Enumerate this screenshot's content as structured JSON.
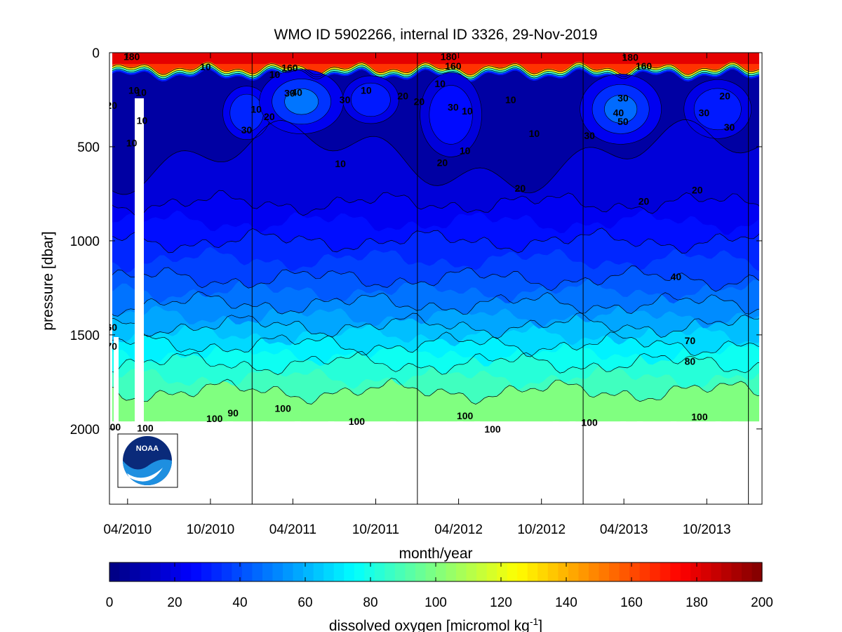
{
  "chart_data": {
    "type": "heatmap",
    "title": "WMO ID 5902266, internal ID 3326, 29-Nov-2019",
    "xlabel": "month/year",
    "ylabel": "pressure [dbar]",
    "colorbar_label": "dissolved oxygen [micromol kg",
    "colorbar_label_sup": "-1",
    "colorbar_label_end": "]",
    "xlim": [
      "2010-02-20",
      "2014-01-31"
    ],
    "ylim": [
      0,
      2400
    ],
    "x_ticks": [
      {
        "date": "2010-04-01",
        "label": "04/2010"
      },
      {
        "date": "2010-10-01",
        "label": "10/2010"
      },
      {
        "date": "2011-04-01",
        "label": "04/2011"
      },
      {
        "date": "2011-10-01",
        "label": "10/2011"
      },
      {
        "date": "2012-04-01",
        "label": "04/2012"
      },
      {
        "date": "2012-10-01",
        "label": "10/2012"
      },
      {
        "date": "2013-04-01",
        "label": "04/2013"
      },
      {
        "date": "2013-10-01",
        "label": "10/2013"
      }
    ],
    "y_ticks": [
      0,
      500,
      1000,
      1500,
      2000
    ],
    "year_lines": [
      "2011-01-01",
      "2012-01-01",
      "2013-01-01",
      "2014-01-01"
    ],
    "colorbar_range": [
      0,
      200
    ],
    "colorbar_ticks": [
      0,
      20,
      40,
      60,
      80,
      100,
      120,
      140,
      160,
      180,
      200
    ],
    "data_max_pressure": 1960,
    "oxygen_profile": [
      {
        "pressure": 0,
        "oxygen": 180
      },
      {
        "pressure": 60,
        "oxygen": 175
      },
      {
        "pressure": 90,
        "oxygen": 25
      },
      {
        "pressure": 150,
        "oxygen": 8
      },
      {
        "pressure": 400,
        "oxygen": 9
      },
      {
        "pressure": 800,
        "oxygen": 20
      },
      {
        "pressure": 1000,
        "oxygen": 30
      },
      {
        "pressure": 1200,
        "oxygen": 40
      },
      {
        "pressure": 1400,
        "oxygen": 55
      },
      {
        "pressure": 1550,
        "oxygen": 70
      },
      {
        "pressure": 1650,
        "oxygen": 80
      },
      {
        "pressure": 1800,
        "oxygen": 90
      },
      {
        "pressure": 1960,
        "oxygen": 100
      }
    ],
    "contour_labels": [
      {
        "text": "180",
        "date": "2010-04-10",
        "pressure": 20
      },
      {
        "text": "10",
        "date": "2010-09-20",
        "pressure": 75
      },
      {
        "text": "10",
        "date": "2011-02-20",
        "pressure": 115
      },
      {
        "text": "160",
        "date": "2011-03-25",
        "pressure": 80
      },
      {
        "text": "10",
        "date": "2010-04-15",
        "pressure": 200
      },
      {
        "text": "10",
        "date": "2010-05-01",
        "pressure": 210
      },
      {
        "text": "10",
        "date": "2010-05-03",
        "pressure": 360
      },
      {
        "text": "10",
        "date": "2010-04-10",
        "pressure": 480
      },
      {
        "text": "20",
        "date": "2010-02-25",
        "pressure": 280
      },
      {
        "text": "30",
        "date": "2010-12-20",
        "pressure": 410
      },
      {
        "text": "10",
        "date": "2011-01-10",
        "pressure": 300
      },
      {
        "text": "20",
        "date": "2011-02-08",
        "pressure": 340
      },
      {
        "text": "30",
        "date": "2011-03-25",
        "pressure": 215
      },
      {
        "text": "40",
        "date": "2011-04-10",
        "pressure": 210
      },
      {
        "text": "30",
        "date": "2011-07-25",
        "pressure": 250
      },
      {
        "text": "10",
        "date": "2011-09-10",
        "pressure": 200
      },
      {
        "text": "10",
        "date": "2011-07-15",
        "pressure": 590
      },
      {
        "text": "20",
        "date": "2011-11-30",
        "pressure": 230
      },
      {
        "text": "20",
        "date": "2012-01-05",
        "pressure": 260
      },
      {
        "text": "10",
        "date": "2012-02-20",
        "pressure": 165
      },
      {
        "text": "30",
        "date": "2012-03-20",
        "pressure": 290
      },
      {
        "text": "10",
        "date": "2012-04-20",
        "pressure": 310
      },
      {
        "text": "20",
        "date": "2012-02-25",
        "pressure": 585
      },
      {
        "text": "10",
        "date": "2012-04-15",
        "pressure": 520
      },
      {
        "text": "180",
        "date": "2012-03-10",
        "pressure": 20
      },
      {
        "text": "160",
        "date": "2012-03-20",
        "pressure": 70
      },
      {
        "text": "10",
        "date": "2012-07-25",
        "pressure": 250
      },
      {
        "text": "10",
        "date": "2012-09-15",
        "pressure": 430
      },
      {
        "text": "20",
        "date": "2012-08-15",
        "pressure": 720
      },
      {
        "text": "30",
        "date": "2013-01-15",
        "pressure": 440
      },
      {
        "text": "180",
        "date": "2013-04-15",
        "pressure": 25
      },
      {
        "text": "160",
        "date": "2013-05-15",
        "pressure": 70
      },
      {
        "text": "30",
        "date": "2013-03-30",
        "pressure": 240
      },
      {
        "text": "40",
        "date": "2013-03-20",
        "pressure": 320
      },
      {
        "text": "50",
        "date": "2013-03-30",
        "pressure": 365
      },
      {
        "text": "20",
        "date": "2013-11-10",
        "pressure": 230
      },
      {
        "text": "30",
        "date": "2013-09-25",
        "pressure": 320
      },
      {
        "text": "30",
        "date": "2013-11-20",
        "pressure": 395
      },
      {
        "text": "20",
        "date": "2013-09-10",
        "pressure": 730
      },
      {
        "text": "20",
        "date": "2013-05-15",
        "pressure": 790
      },
      {
        "text": "40",
        "date": "2013-07-25",
        "pressure": 1190
      },
      {
        "text": "70",
        "date": "2013-08-25",
        "pressure": 1530
      },
      {
        "text": "80",
        "date": "2013-08-25",
        "pressure": 1640
      },
      {
        "text": "60",
        "date": "2010-02-25",
        "pressure": 1460
      },
      {
        "text": "70",
        "date": "2010-02-25",
        "pressure": 1560
      },
      {
        "text": "100",
        "date": "2010-02-27",
        "pressure": 1990
      },
      {
        "text": "100",
        "date": "2010-05-10",
        "pressure": 1995
      },
      {
        "text": "100",
        "date": "2010-10-10",
        "pressure": 1945
      },
      {
        "text": "90",
        "date": "2010-11-20",
        "pressure": 1915
      },
      {
        "text": "100",
        "date": "2011-03-10",
        "pressure": 1890
      },
      {
        "text": "100",
        "date": "2011-08-20",
        "pressure": 1960
      },
      {
        "text": "100",
        "date": "2012-04-15",
        "pressure": 1930
      },
      {
        "text": "100",
        "date": "2012-06-15",
        "pressure": 2000
      },
      {
        "text": "100",
        "date": "2013-01-15",
        "pressure": 1965
      },
      {
        "text": "100",
        "date": "2013-09-15",
        "pressure": 1935
      }
    ]
  },
  "logo": {
    "text": "NOAA",
    "dark_color": "#0a2a7a",
    "light_color": "#1e8fe0"
  }
}
